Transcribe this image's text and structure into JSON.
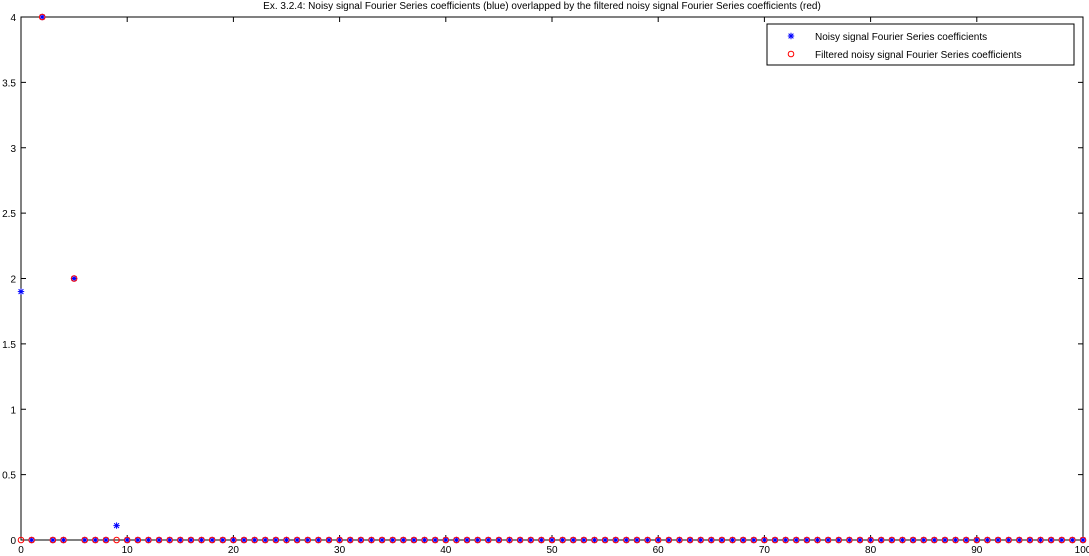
{
  "chart_data": {
    "type": "scatter",
    "title": "Ex. 3.2.4: Noisy signal Fourier Series coefficients (blue) overlapped by the filtered noisy signal Fourier Series coefficients (red)",
    "xlabel": "",
    "ylabel": "",
    "xlim": [
      0,
      100
    ],
    "ylim": [
      0,
      4
    ],
    "xticks": [
      0,
      10,
      20,
      30,
      40,
      50,
      60,
      70,
      80,
      90,
      100
    ],
    "yticks": [
      0,
      0.5,
      1,
      1.5,
      2,
      2.5,
      3,
      3.5,
      4
    ],
    "grid": false,
    "legend_position": "top-right",
    "series": [
      {
        "name": "Noisy signal Fourier Series coefficients",
        "marker": "star",
        "color": "#0000ff",
        "points": [
          [
            0,
            1.9
          ],
          [
            2,
            4.0
          ],
          [
            5,
            2.0
          ],
          [
            9,
            0.11
          ]
        ],
        "zero_range": [
          1,
          100
        ]
      },
      {
        "name": "Filtered noisy signal Fourier Series coefficients",
        "marker": "circle",
        "color": "#ff0000",
        "points": [
          [
            2,
            4.0
          ],
          [
            5,
            2.0
          ]
        ],
        "zero_range": [
          0,
          100
        ]
      }
    ]
  }
}
